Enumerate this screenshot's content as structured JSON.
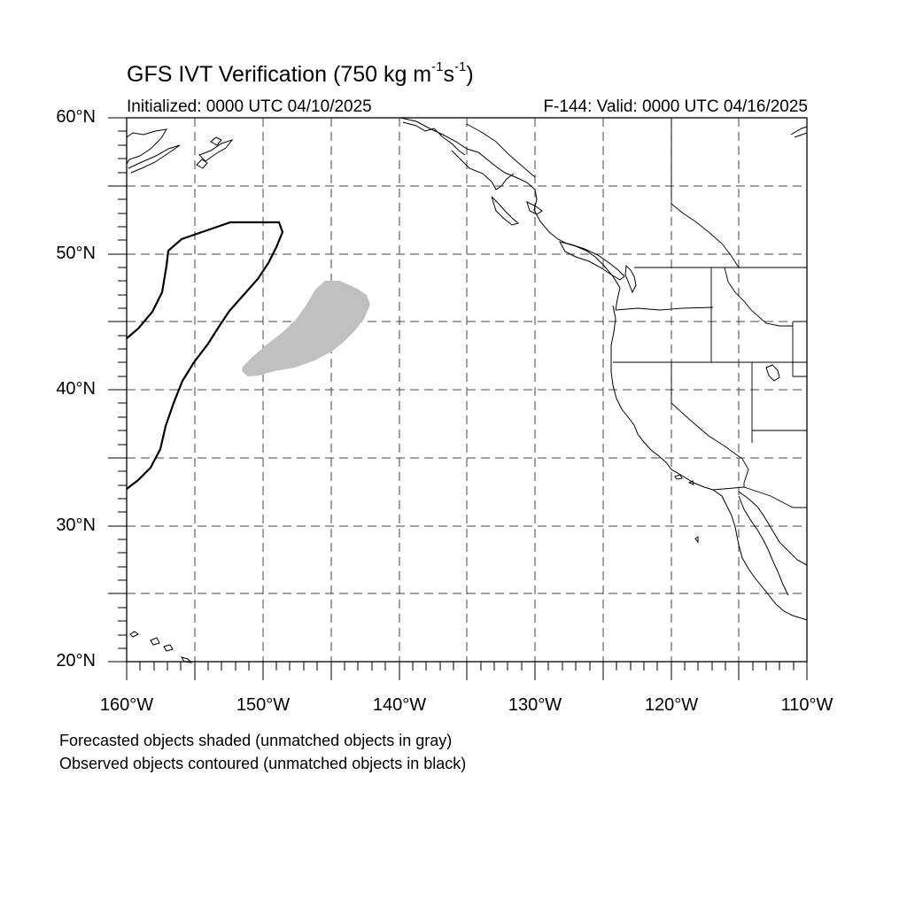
{
  "title": {
    "prefix": "GFS IVT Verification (750 kg m",
    "exp1": "-1",
    "mid": "s",
    "exp2": "-1",
    "suffix": ")"
  },
  "initialized": "Initialized: 0000 UTC 04/10/2025",
  "valid": "F-144: Valid: 0000 UTC 04/16/2025",
  "map": {
    "lon_range": [
      -160,
      -110
    ],
    "lat_range": [
      20,
      60
    ],
    "lat_labels": [
      "60°N",
      "50°N",
      "40°N",
      "30°N",
      "20°N"
    ],
    "lon_labels": [
      "160°W",
      "150°W",
      "140°W",
      "130°W",
      "120°W",
      "110°W"
    ],
    "grid": "dashed, every 5°",
    "colors": {
      "forecast_unmatched": "#c0c0c0",
      "observed_unmatched": "#000000",
      "coast": "#000000"
    }
  },
  "legend": {
    "line1": "Forecasted objects shaded (unmatched objects in gray)",
    "line2": "Observed objects contoured (unmatched objects in black)"
  }
}
